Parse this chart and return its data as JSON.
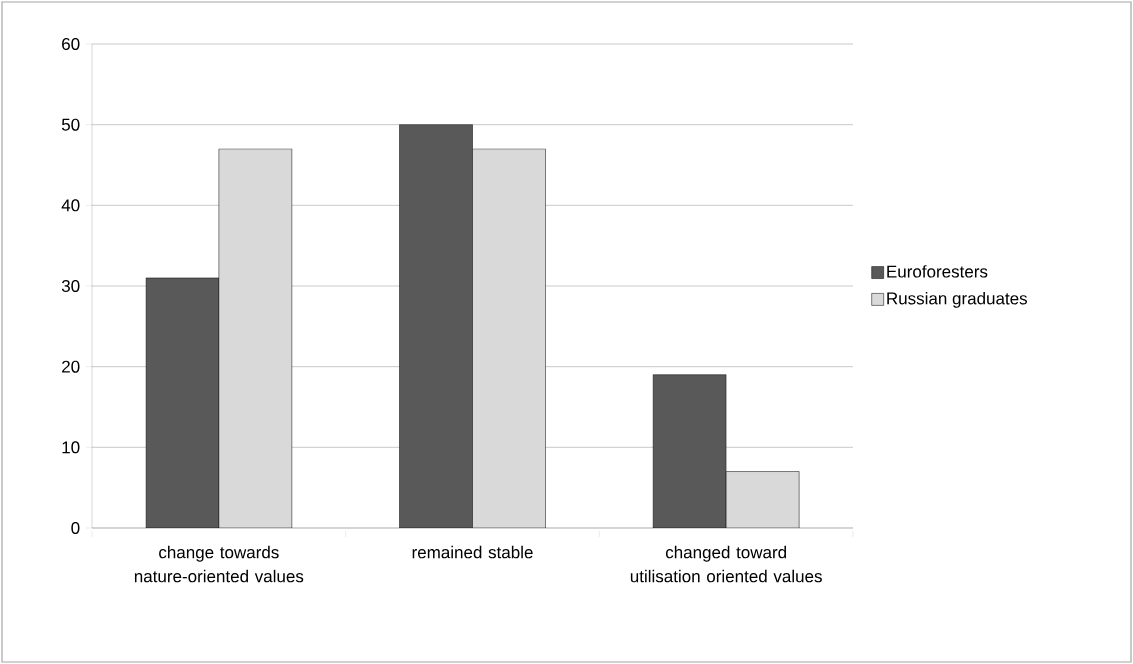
{
  "chart_data": {
    "type": "bar",
    "categories": [
      "change towards nature-oriented values",
      "remained stable",
      "changed toward utilisation oriented values"
    ],
    "series": [
      {
        "name": "Euroforesters",
        "color": "#595959",
        "values": [
          31,
          50,
          19
        ]
      },
      {
        "name": "Russian graduates",
        "color": "#d9d9d9",
        "values": [
          47,
          47,
          7
        ]
      }
    ],
    "ylim": [
      0,
      60
    ],
    "yticks": [
      0,
      10,
      20,
      30,
      40,
      50,
      60
    ],
    "grid": "y",
    "legend": "right"
  }
}
